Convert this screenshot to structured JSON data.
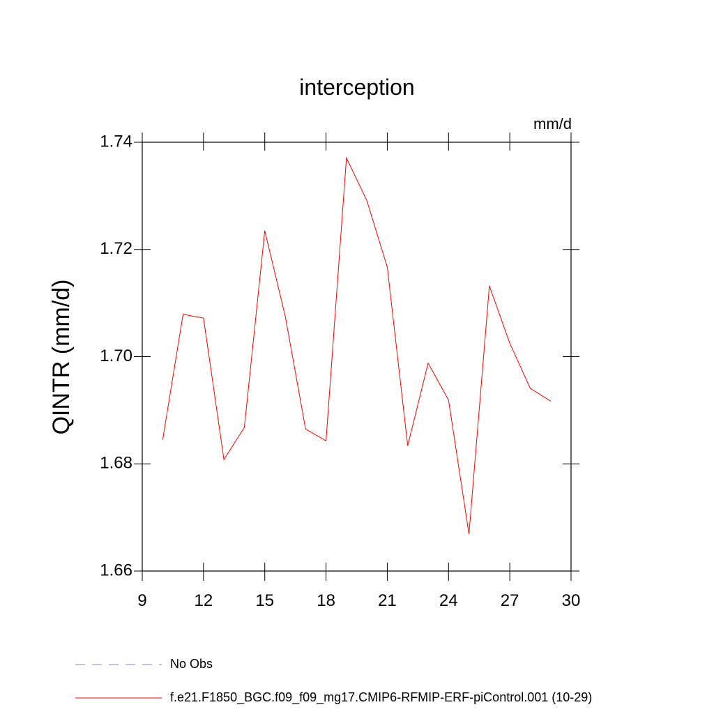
{
  "chart_data": {
    "type": "line",
    "title": "interception",
    "units": "mm/d",
    "y_label": "QINTR  (mm/d)",
    "x": [
      10,
      11,
      12,
      13,
      14,
      15,
      16,
      17,
      18,
      19,
      20,
      21,
      22,
      23,
      24,
      25,
      26,
      27,
      28,
      29
    ],
    "series": [
      {
        "name": "f.e21.F1850_BGC.f09_f09_mg17.CMIP6-RFMIP-ERF-piControl.001 (10-29)",
        "color": "#ff0000",
        "values": [
          1.6845,
          1.7079,
          1.7072,
          1.6808,
          1.6868,
          1.7235,
          1.7076,
          1.6865,
          1.6843,
          1.7371,
          1.7291,
          1.7167,
          1.6834,
          1.6988,
          1.6919,
          1.6669,
          1.7132,
          1.7025,
          1.6941,
          1.6917
        ]
      }
    ],
    "legend_extra": [
      {
        "label": "No Obs",
        "color": "#8a7fd0",
        "dashed": true
      }
    ],
    "xlim": [
      9,
      30
    ],
    "xticks": [
      9,
      12,
      15,
      18,
      21,
      24,
      27,
      30
    ],
    "ylim": [
      1.66,
      1.74
    ],
    "yticks": [
      1.66,
      1.68,
      {
        "value": 1.7,
        "label": "1.70"
      },
      1.72,
      1.74
    ]
  }
}
